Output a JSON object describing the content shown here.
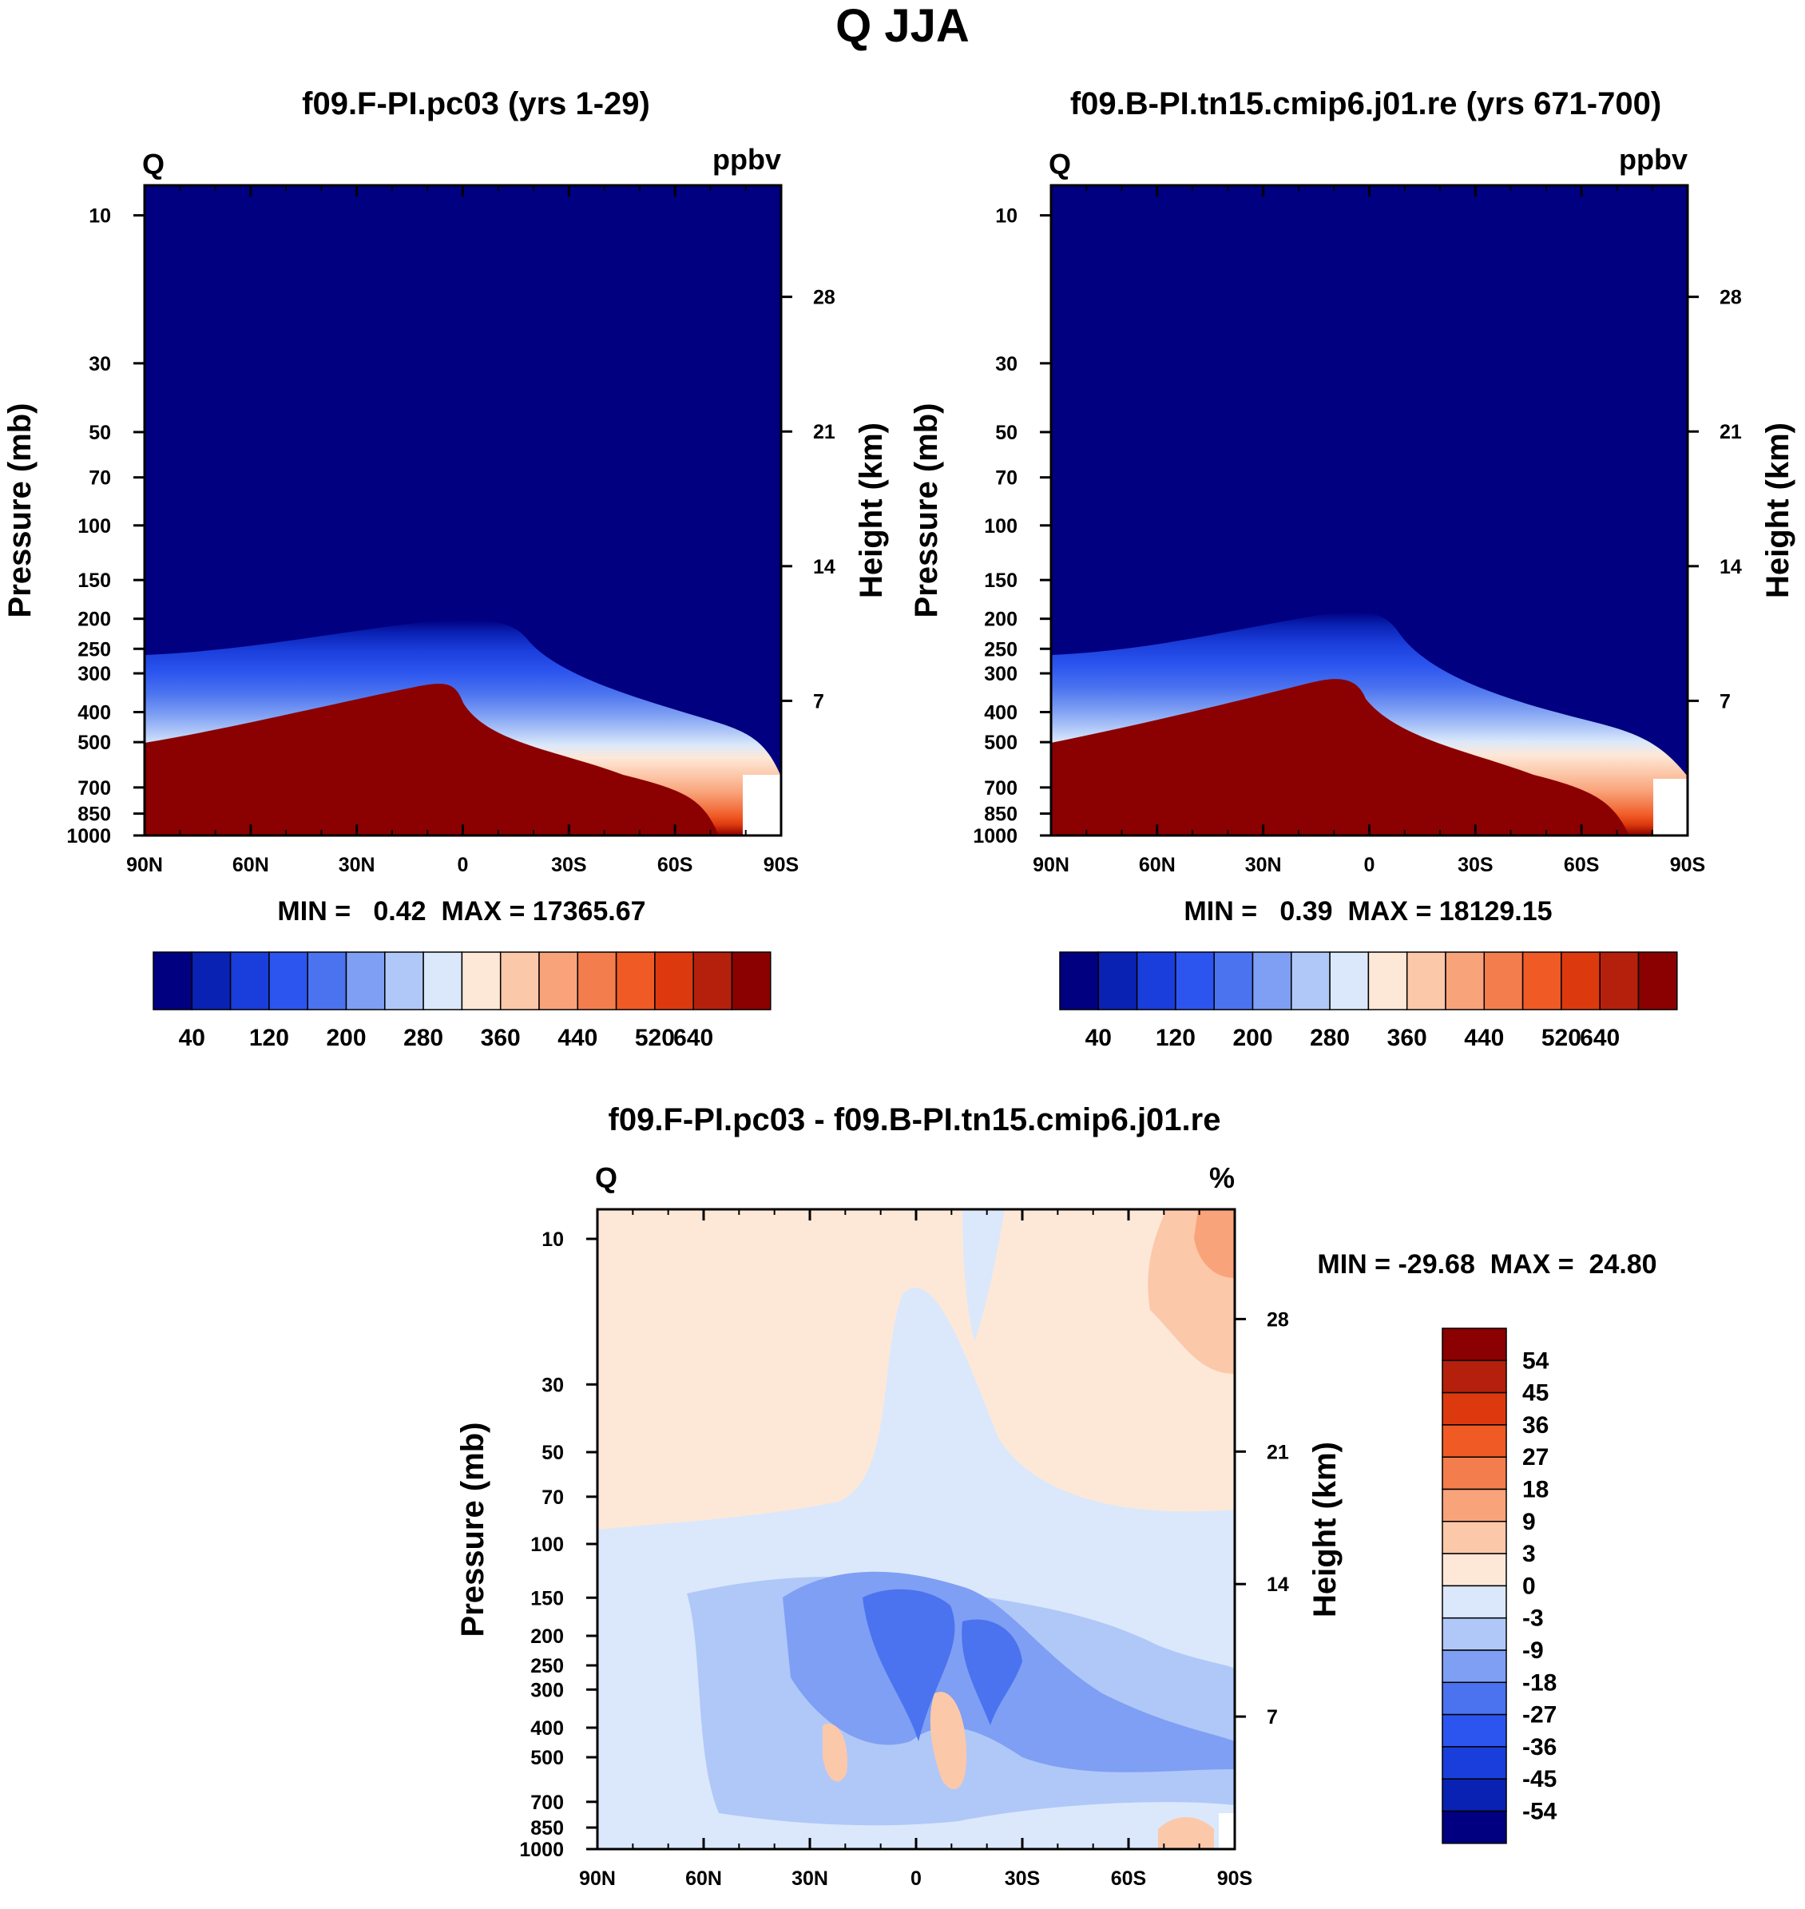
{
  "figure": {
    "title": "Q JJA"
  },
  "chart_data": [
    {
      "type": "heatmap",
      "title": "f09.F-PI.pc03 (yrs 1-29)",
      "corner_left": "Q",
      "corner_right": "ppbv",
      "xlabel": "",
      "ylabel": "Pressure (mb)",
      "ylabel_right": "Height (km)",
      "x_ticks": [
        "90N",
        "60N",
        "30N",
        "0",
        "30S",
        "60S",
        "90S"
      ],
      "y_ticks": [
        "10",
        "30",
        "50",
        "70",
        "100",
        "150",
        "200",
        "250",
        "300",
        "400",
        "500",
        "700",
        "850",
        "1000"
      ],
      "y_right_ticks": [
        "28",
        "21",
        "14",
        "7"
      ],
      "xlim": [
        -90,
        90
      ],
      "ylim": [
        1000,
        10
      ],
      "stats": "MIN =   0.42  MAX = 17365.67",
      "levels": [
        40,
        80,
        120,
        160,
        200,
        240,
        280,
        320,
        360,
        400,
        440,
        480,
        520,
        560,
        600,
        640
      ],
      "colorbar_labels": [
        "40",
        "120",
        "200",
        "280",
        "360",
        "440",
        "520",
        "640"
      ],
      "transition_pressure_mb": [
        {
          "lat": 90,
          "p_top": 265,
          "p_bottom": 520
        },
        {
          "lat": 70,
          "p_top": 250,
          "p_bottom": 480
        },
        {
          "lat": 45,
          "p_top": 215,
          "p_bottom": 390
        },
        {
          "lat": 20,
          "p_top": 200,
          "p_bottom": 330
        },
        {
          "lat": 5,
          "p_top": 215,
          "p_bottom": 355
        },
        {
          "lat": -15,
          "p_top": 265,
          "p_bottom": 480
        },
        {
          "lat": -40,
          "p_top": 300,
          "p_bottom": 520
        },
        {
          "lat": -65,
          "p_top": 380,
          "p_bottom": 800
        },
        {
          "lat": -90,
          "p_top": 440,
          "p_bottom": 1000
        }
      ]
    },
    {
      "type": "heatmap",
      "title": "f09.B-PI.tn15.cmip6.j01.re (yrs 671-700)",
      "corner_left": "Q",
      "corner_right": "ppbv",
      "xlabel": "",
      "ylabel": "Pressure (mb)",
      "ylabel_right": "Height (km)",
      "x_ticks": [
        "90N",
        "60N",
        "30N",
        "0",
        "30S",
        "60S",
        "90S"
      ],
      "y_ticks": [
        "10",
        "30",
        "50",
        "70",
        "100",
        "150",
        "200",
        "250",
        "300",
        "400",
        "500",
        "700",
        "850",
        "1000"
      ],
      "y_right_ticks": [
        "28",
        "21",
        "14",
        "7"
      ],
      "xlim": [
        -90,
        90
      ],
      "ylim": [
        1000,
        10
      ],
      "stats": "MIN =   0.39  MAX = 18129.15",
      "levels": [
        40,
        80,
        120,
        160,
        200,
        240,
        280,
        320,
        360,
        400,
        440,
        480,
        520,
        560,
        600,
        640
      ],
      "colorbar_labels": [
        "40",
        "120",
        "200",
        "280",
        "360",
        "440",
        "520",
        "640"
      ],
      "transition_pressure_mb": [
        {
          "lat": 90,
          "p_top": 265,
          "p_bottom": 520
        },
        {
          "lat": 70,
          "p_top": 250,
          "p_bottom": 480
        },
        {
          "lat": 45,
          "p_top": 210,
          "p_bottom": 380
        },
        {
          "lat": 15,
          "p_top": 185,
          "p_bottom": 315
        },
        {
          "lat": 5,
          "p_top": 195,
          "p_bottom": 330
        },
        {
          "lat": -15,
          "p_top": 265,
          "p_bottom": 480
        },
        {
          "lat": -40,
          "p_top": 300,
          "p_bottom": 520
        },
        {
          "lat": -65,
          "p_top": 380,
          "p_bottom": 800
        },
        {
          "lat": -90,
          "p_top": 440,
          "p_bottom": 1000
        }
      ]
    },
    {
      "type": "heatmap",
      "title": "f09.F-PI.pc03 - f09.B-PI.tn15.cmip6.j01.re",
      "corner_left": "Q",
      "corner_right": "%",
      "xlabel": "",
      "ylabel": "Pressure (mb)",
      "ylabel_right": "Height (km)",
      "x_ticks": [
        "90N",
        "60N",
        "30N",
        "0",
        "30S",
        "60S",
        "90S"
      ],
      "y_ticks": [
        "10",
        "30",
        "50",
        "70",
        "100",
        "150",
        "200",
        "250",
        "300",
        "400",
        "500",
        "700",
        "850",
        "1000"
      ],
      "y_right_ticks": [
        "28",
        "21",
        "14",
        "7"
      ],
      "xlim": [
        -90,
        90
      ],
      "ylim": [
        1000,
        10
      ],
      "stats": "MIN = -29.68  MAX =  24.80",
      "levels": [
        -54,
        -45,
        -36,
        -27,
        -18,
        -9,
        -3,
        0,
        3,
        9,
        18,
        27,
        36,
        45,
        54
      ],
      "colorbar_labels": [
        "54",
        "45",
        "36",
        "27",
        "18",
        "9",
        "3",
        "0",
        "-3",
        "-9",
        "-18",
        "-27",
        "-36",
        "-45",
        "-54"
      ],
      "regions": [
        {
          "name": "upper-positive",
          "value": 2,
          "lat_range": [
            90,
            -90
          ],
          "p_range": [
            10,
            100
          ]
        },
        {
          "name": "tropical-negative-core",
          "value": -27,
          "lat_range": [
            15,
            -25
          ],
          "p_range": [
            150,
            500
          ]
        },
        {
          "name": "southern-high-positive",
          "value": 15,
          "lat_range": [
            -60,
            -90
          ],
          "p_range": [
            10,
            60
          ]
        },
        {
          "name": "lower-trop-negative",
          "value": -12,
          "lat_range": [
            -20,
            -90
          ],
          "p_range": [
            250,
            700
          ]
        },
        {
          "name": "tropical-positive-tongues",
          "value": 6,
          "lat_range": [
            25,
            0
          ],
          "p_range": [
            400,
            850
          ]
        }
      ]
    }
  ],
  "colorbars": {
    "ppbv_colors": [
      "#000080",
      "#0a22b4",
      "#1a3edb",
      "#2c55ef",
      "#4b73ef",
      "#7e9ff3",
      "#b0c8f8",
      "#dbe8fb",
      "#fde8d8",
      "#fcc8aa",
      "#f9a37a",
      "#f47d4e",
      "#f05a25",
      "#dc3a0e",
      "#b5200c",
      "#8b0000"
    ],
    "diff_colors": [
      "#8b0000",
      "#b5200c",
      "#dc3a0e",
      "#f05a25",
      "#f47d4e",
      "#f9a37a",
      "#fcc8aa",
      "#fde8d8",
      "#dbe8fb",
      "#b0c8f8",
      "#7e9ff3",
      "#4b73ef",
      "#2c55ef",
      "#1a3edb",
      "#0a22b4",
      "#000080"
    ]
  }
}
